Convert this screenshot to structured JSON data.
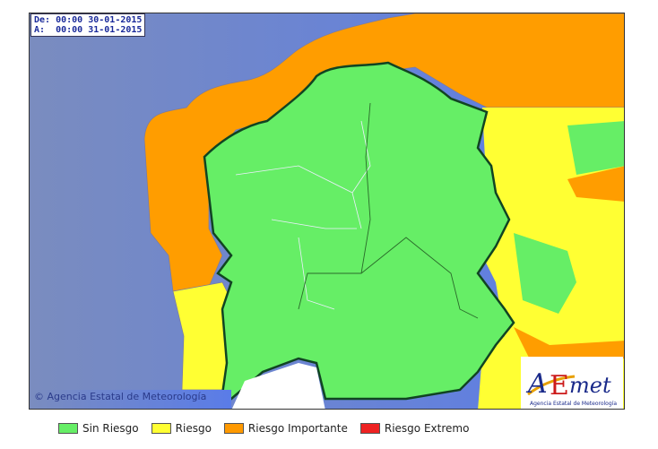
{
  "dates": {
    "from_label": "De:",
    "from": "00:00 30-01-2015",
    "to_label": "A:",
    "to": "00:00 31-01-2015"
  },
  "copyright": "© Agencia Estatal de Meteorología",
  "logo": {
    "text": "AEmet",
    "subtitle": "Agencia Estatal de Meteorología"
  },
  "colors": {
    "sin_riesgo": "#66ee66",
    "riesgo": "#ffff33",
    "riesgo_importante": "#ff9900",
    "riesgo_extremo": "#ee2222",
    "ocean": "#6a86d4"
  },
  "legend": [
    {
      "label": "Sin Riesgo",
      "color": "#66ee66"
    },
    {
      "label": "Riesgo",
      "color": "#ffff33"
    },
    {
      "label": "Riesgo Importante",
      "color": "#ff9900"
    },
    {
      "label": "Riesgo Extremo",
      "color": "#ee2222"
    }
  ]
}
